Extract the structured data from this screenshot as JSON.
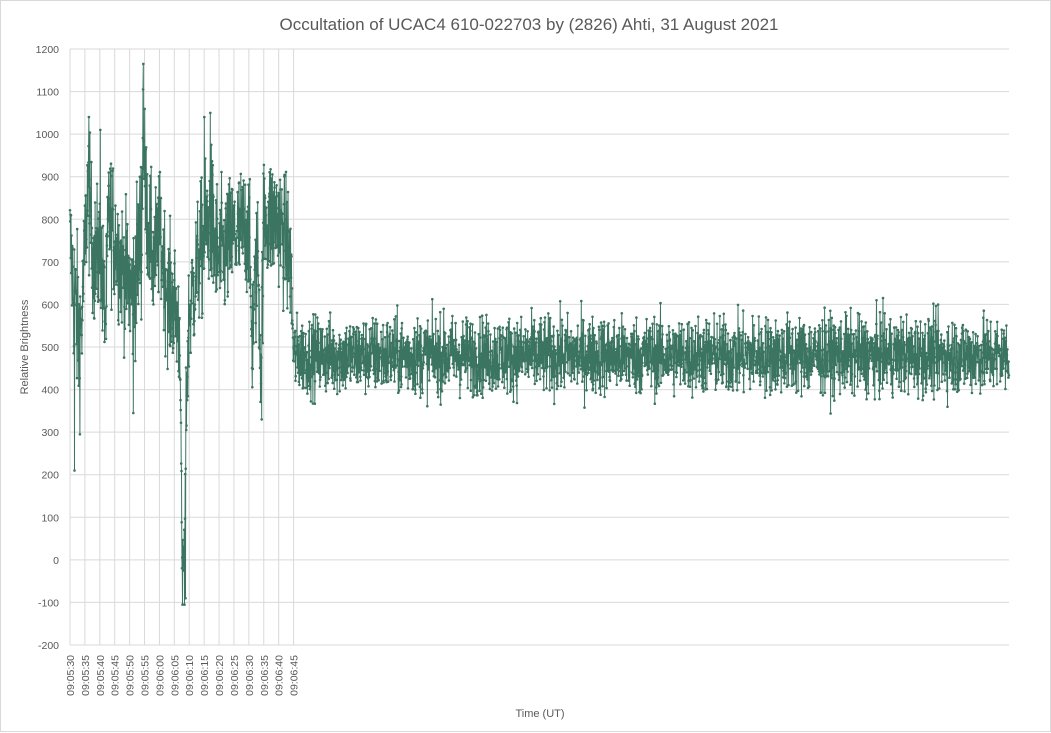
{
  "chart_data": {
    "type": "line",
    "title": "Occultation of UCAC4 610-022703 by (2826) Ahti, 31 August 2021",
    "xlabel": "Time (UT)",
    "ylabel": "Relative Brightness",
    "x_range_seconds_of_day": [
      32730,
      33045
    ],
    "ylim": [
      -200,
      1200
    ],
    "y_ticks": [
      "-200",
      "-100",
      "0",
      "100",
      "200",
      "300",
      "400",
      "500",
      "600",
      "700",
      "800",
      "900",
      "1000",
      "1100",
      "1200"
    ],
    "x_ticks": [
      "09:05:30",
      "09:05:35",
      "09:05:40",
      "09:05:45",
      "09:05:50",
      "09:05:55",
      "09:06:00",
      "09:06:05",
      "09:06:10",
      "09:06:15",
      "09:06:20",
      "09:06:25",
      "09:06:30",
      "09:06:35",
      "09:06:40",
      "09:06:45"
    ],
    "grid": true,
    "series": [
      {
        "color": "#3b7562",
        "marker": "circle",
        "sampling_interval_s": 0.0833,
        "approximate_profile": [
          {
            "t": "09:05:30",
            "mean": 760,
            "spread": 80
          },
          {
            "t": "09:05:31",
            "mean": 650,
            "spread": 120
          },
          {
            "t": "09:05:33",
            "mean": 520,
            "spread": 130
          },
          {
            "t": "09:05:34",
            "mean": 560,
            "spread": 100
          },
          {
            "t": "09:05:35",
            "mean": 740,
            "spread": 90
          },
          {
            "t": "09:05:36",
            "mean": 880,
            "spread": 110
          },
          {
            "t": "09:05:38",
            "mean": 700,
            "spread": 100
          },
          {
            "t": "09:05:40",
            "mean": 720,
            "spread": 110
          },
          {
            "t": "09:05:42",
            "mean": 560,
            "spread": 100
          },
          {
            "t": "09:05:43",
            "mean": 820,
            "spread": 110
          },
          {
            "t": "09:05:47",
            "mean": 700,
            "spread": 100
          },
          {
            "t": "09:05:51",
            "mean": 620,
            "spread": 110
          },
          {
            "t": "09:05:54",
            "mean": 780,
            "spread": 130
          },
          {
            "t": "09:05:54.5",
            "mean": 980,
            "spread": 100
          },
          {
            "t": "09:05:56",
            "mean": 800,
            "spread": 100
          },
          {
            "t": "09:05:58",
            "mean": 700,
            "spread": 100
          },
          {
            "t": "09:06:00",
            "mean": 760,
            "spread": 100
          },
          {
            "t": "09:06:03",
            "mean": 620,
            "spread": 100
          },
          {
            "t": "09:06:05",
            "mean": 600,
            "spread": 100
          },
          {
            "t": "09:06:07",
            "mean": 520,
            "spread": 90
          },
          {
            "t": "09:06:07.5",
            "mean": 20,
            "spread": 60
          },
          {
            "t": "09:06:08.5",
            "mean": 10,
            "spread": 60
          },
          {
            "t": "09:06:09",
            "mean": 380,
            "spread": 90
          },
          {
            "t": "09:06:10",
            "mean": 580,
            "spread": 100
          },
          {
            "t": "09:06:13",
            "mean": 700,
            "spread": 100
          },
          {
            "t": "09:06:17",
            "mean": 800,
            "spread": 120
          },
          {
            "t": "09:06:20",
            "mean": 700,
            "spread": 110
          },
          {
            "t": "09:06:25",
            "mean": 760,
            "spread": 100
          },
          {
            "t": "09:06:30",
            "mean": 780,
            "spread": 100
          },
          {
            "t": "09:06:31",
            "mean": 520,
            "spread": 110
          },
          {
            "t": "09:06:33",
            "mean": 720,
            "spread": 100
          },
          {
            "t": "09:06:34",
            "mean": 460,
            "spread": 90
          },
          {
            "t": "09:06:35",
            "mean": 800,
            "spread": 100
          },
          {
            "t": "09:06:40",
            "mean": 800,
            "spread": 100
          },
          {
            "t": "09:06:44",
            "mean": 700,
            "spread": 100
          },
          {
            "t": "09:06:45",
            "mean": 480,
            "spread": 60
          }
        ],
        "notable_points": [
          {
            "t": "09:05:31.5",
            "y": 210
          },
          {
            "t": "09:05:36.3",
            "y": 1040
          },
          {
            "t": "09:05:40.2",
            "y": 1010
          },
          {
            "t": "09:05:51.2",
            "y": 345
          },
          {
            "t": "09:05:54.6",
            "y": 1165
          },
          {
            "t": "09:05:54.5",
            "y": 1105
          },
          {
            "t": "09:06:07.7",
            "y": -105
          },
          {
            "t": "09:06:08.4",
            "y": -105
          },
          {
            "t": "09:06:08.7",
            "y": -90
          },
          {
            "t": "09:06:17.1",
            "y": 1050
          },
          {
            "t": "09:06:15.1",
            "y": 1040
          },
          {
            "t": "09:06:34.3",
            "y": 330
          }
        ]
      }
    ]
  }
}
